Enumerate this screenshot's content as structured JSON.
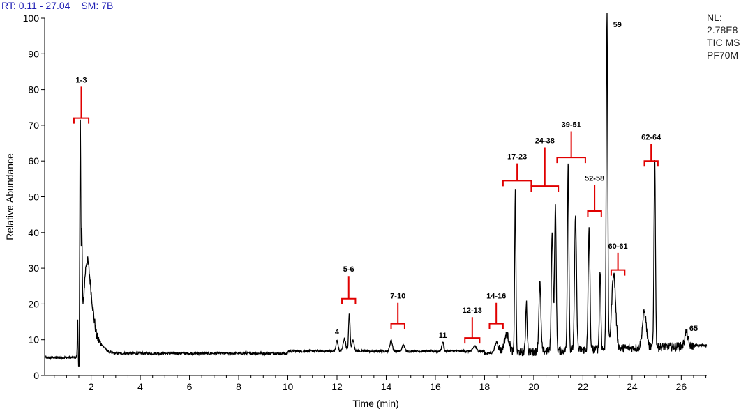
{
  "header": {
    "rt_label": "RT:",
    "rt_value": "0.11 - 27.04",
    "sm_label": "SM:",
    "sm_value": "7B"
  },
  "info": {
    "nl_label": "NL:",
    "nl_value": "2.78E8",
    "scan_type": "TIC  MS",
    "sample": "PF70M"
  },
  "colors": {
    "trace": "#000000",
    "bracket": "#e00000",
    "header": "#1f1fb4"
  },
  "chart_data": {
    "type": "line",
    "xlabel": "Time (min)",
    "ylabel": "Relative Abundance",
    "xlim": [
      0.11,
      27.04
    ],
    "ylim": [
      0,
      100
    ],
    "x_ticks": [
      2,
      4,
      6,
      8,
      10,
      12,
      14,
      16,
      18,
      20,
      22,
      24,
      26
    ],
    "y_ticks": [
      0,
      10,
      20,
      30,
      40,
      50,
      60,
      70,
      80,
      90,
      100
    ],
    "baseline": 5,
    "series": [
      {
        "peaks": [
          {
            "rt": 1.45,
            "height": 11,
            "width": 0.012
          },
          {
            "rt": 1.56,
            "height": 62,
            "width": 0.02
          },
          {
            "rt": 1.62,
            "height": 27,
            "width": 0.02
          },
          {
            "rt": 1.8,
            "height": 18,
            "width": 0.12
          },
          {
            "rt": 2.0,
            "height": 9,
            "width": 0.15
          },
          {
            "rt": 2.35,
            "height": 2.5,
            "width": 0.2
          },
          {
            "rt": 12.0,
            "height": 3,
            "width": 0.04
          },
          {
            "rt": 12.3,
            "height": 3.5,
            "width": 0.05
          },
          {
            "rt": 12.5,
            "height": 10.5,
            "width": 0.03
          },
          {
            "rt": 12.65,
            "height": 3,
            "width": 0.05
          },
          {
            "rt": 14.2,
            "height": 3,
            "width": 0.05
          },
          {
            "rt": 14.7,
            "height": 1.8,
            "width": 0.05
          },
          {
            "rt": 16.3,
            "height": 2.5,
            "width": 0.04
          },
          {
            "rt": 17.6,
            "height": 1.5,
            "width": 0.06
          },
          {
            "rt": 18.5,
            "height": 3,
            "width": 0.08
          },
          {
            "rt": 18.9,
            "height": 5,
            "width": 0.1
          },
          {
            "rt": 19.25,
            "height": 46,
            "width": 0.025
          },
          {
            "rt": 19.7,
            "height": 14,
            "width": 0.03
          },
          {
            "rt": 20.25,
            "height": 19,
            "width": 0.04
          },
          {
            "rt": 20.75,
            "height": 34,
            "width": 0.035
          },
          {
            "rt": 20.88,
            "height": 40,
            "width": 0.035
          },
          {
            "rt": 21.4,
            "height": 53,
            "width": 0.03
          },
          {
            "rt": 21.7,
            "height": 37,
            "width": 0.04
          },
          {
            "rt": 22.25,
            "height": 34,
            "width": 0.035
          },
          {
            "rt": 22.7,
            "height": 22,
            "width": 0.03
          },
          {
            "rt": 22.98,
            "height": 93,
            "width": 0.03
          },
          {
            "rt": 23.25,
            "height": 21,
            "width": 0.08
          },
          {
            "rt": 24.5,
            "height": 10,
            "width": 0.08
          },
          {
            "rt": 24.92,
            "height": 53,
            "width": 0.03
          },
          {
            "rt": 26.2,
            "height": 4,
            "width": 0.06
          }
        ]
      }
    ],
    "annotations": [
      {
        "label": "1-3",
        "x1": 1.3,
        "x2": 1.9,
        "y_bracket": 72,
        "y_label": 82
      },
      {
        "label": "4",
        "x": 12.0,
        "y_label": 11.5
      },
      {
        "label": "5-6",
        "x1": 12.2,
        "x2": 12.75,
        "y_bracket": 21.5,
        "y_label": 29
      },
      {
        "label": "7-10",
        "x1": 14.2,
        "x2": 14.75,
        "y_bracket": 14.5,
        "y_label": 21.5
      },
      {
        "label": "11",
        "x": 16.3,
        "y_label": 10.5
      },
      {
        "label": "12-13",
        "x1": 17.2,
        "x2": 17.8,
        "y_bracket": 10.5,
        "y_label": 17.5
      },
      {
        "label": "14-16",
        "x1": 18.2,
        "x2": 18.75,
        "y_bracket": 14.5,
        "y_label": 21.5
      },
      {
        "label": "17-23",
        "x1": 18.75,
        "x2": 19.9,
        "y_bracket": 54.5,
        "y_label": 60.5
      },
      {
        "label": "24-38",
        "x1": 19.9,
        "x2": 21.0,
        "y_bracket": 53,
        "y_label": 65
      },
      {
        "label": "39-51",
        "x1": 20.95,
        "x2": 22.1,
        "y_bracket": 61,
        "y_label": 69.5
      },
      {
        "label": "52-58",
        "x1": 22.2,
        "x2": 22.75,
        "y_bracket": 46,
        "y_label": 54.5
      },
      {
        "label": "59",
        "x": 23.4,
        "y_label": 97.5
      },
      {
        "label": "60-61",
        "x1": 23.15,
        "x2": 23.7,
        "y_bracket": 29.5,
        "y_label": 35.5
      },
      {
        "label": "62-64",
        "x1": 24.5,
        "x2": 25.05,
        "y_bracket": 60,
        "y_label": 66
      },
      {
        "label": "65",
        "x": 26.5,
        "y_label": 12.5
      }
    ]
  }
}
